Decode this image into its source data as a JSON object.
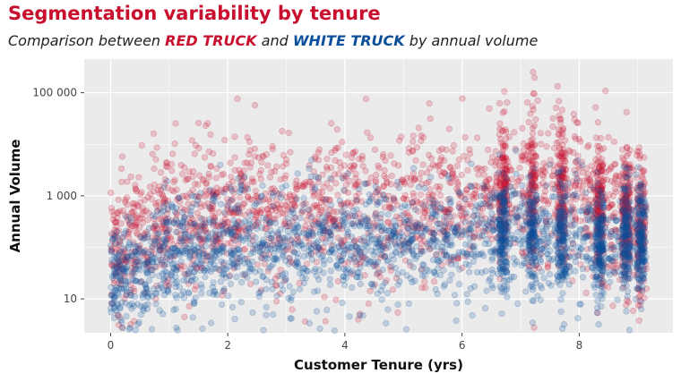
{
  "header": {
    "title": "Segmentation variability by tenure",
    "subtitle_prefix": "Comparison between ",
    "subtitle_series_a": "RED TRUCK",
    "subtitle_middle": " and ",
    "subtitle_series_b": "WHITE TRUCK",
    "subtitle_suffix": " by annual volume"
  },
  "colors": {
    "red_truck": "#c8102e",
    "white_truck": "#0b4f9c",
    "panel": "#ebebeb",
    "grid": "#ffffff"
  },
  "chart_data": {
    "type": "scatter",
    "title": "Segmentation variability by tenure",
    "xlabel": "Customer Tenure (yrs)",
    "ylabel": "Annual Volume",
    "xlim": [
      -0.45,
      9.6
    ],
    "ylim": [
      2.2,
      450000
    ],
    "yscale": "log10",
    "x_ticks": [
      0,
      2,
      4,
      6,
      8
    ],
    "x_tick_labels": [
      "0",
      "2",
      "4",
      "6",
      "8"
    ],
    "y_ticks": [
      10,
      1000,
      100000
    ],
    "y_tick_labels": [
      "10",
      "1 000",
      "100 000"
    ],
    "grid": true,
    "legend": "none",
    "series": [
      {
        "name": "RED TRUCK",
        "color": "#c8102e",
        "opacity": 0.2,
        "approx_median_by_tenure": [
          {
            "x": 0,
            "y": 100
          },
          {
            "x": 1,
            "y": 350
          },
          {
            "x": 2,
            "y": 500
          },
          {
            "x": 4,
            "y": 600
          },
          {
            "x": 6,
            "y": 600
          },
          {
            "x": 6.7,
            "y": 1500
          },
          {
            "x": 7.7,
            "y": 1200
          },
          {
            "x": 8.4,
            "y": 600
          },
          {
            "x": 9.1,
            "y": 300
          }
        ]
      },
      {
        "name": "WHITE TRUCK",
        "color": "#0b4f9c",
        "opacity": 0.2,
        "approx_median_by_tenure": [
          {
            "x": 0,
            "y": 20
          },
          {
            "x": 1,
            "y": 80
          },
          {
            "x": 2,
            "y": 110
          },
          {
            "x": 4,
            "y": 130
          },
          {
            "x": 6,
            "y": 130
          },
          {
            "x": 6.7,
            "y": 180
          },
          {
            "x": 7.7,
            "y": 160
          },
          {
            "x": 8.4,
            "y": 120
          },
          {
            "x": 9.1,
            "y": 130
          }
        ]
      }
    ]
  }
}
